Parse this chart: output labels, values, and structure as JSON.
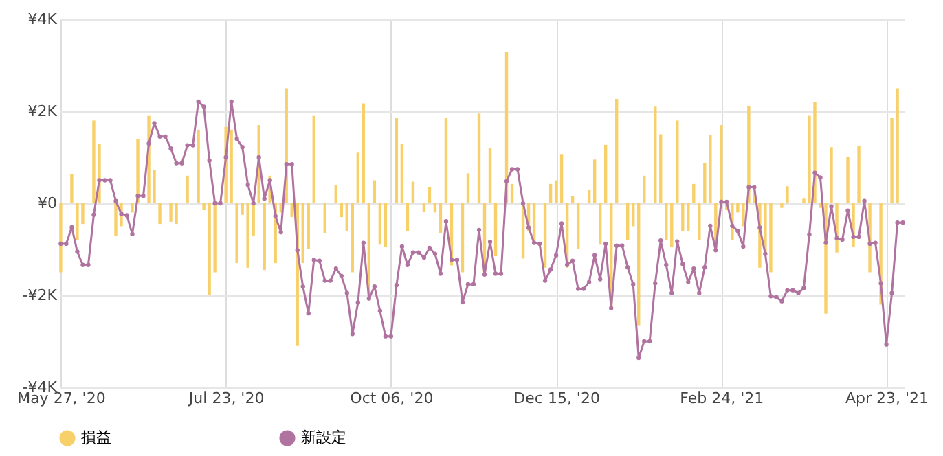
{
  "chart_data": {
    "type": "bar",
    "categories": [
      "May 27, '20",
      null,
      null,
      null,
      null,
      null,
      null,
      null,
      null,
      null,
      null,
      null,
      null,
      null,
      null,
      null,
      null,
      null,
      null,
      null,
      null,
      null,
      null,
      null,
      null,
      null,
      null,
      null,
      null,
      null,
      "Jul 23, '20",
      null,
      null,
      null,
      null,
      null,
      null,
      null,
      null,
      null,
      null,
      null,
      null,
      null,
      null,
      null,
      null,
      null,
      null,
      null,
      null,
      null,
      null,
      null,
      null,
      null,
      null,
      null,
      null,
      null,
      "Oct 06, '20",
      null,
      null,
      null,
      null,
      null,
      null,
      null,
      null,
      null,
      null,
      null,
      null,
      null,
      null,
      null,
      null,
      null,
      null,
      null,
      null,
      null,
      null,
      null,
      null,
      null,
      null,
      null,
      null,
      null,
      "Dec 15, '20",
      null,
      null,
      null,
      null,
      null,
      null,
      null,
      null,
      null,
      null,
      null,
      null,
      null,
      null,
      null,
      null,
      null,
      null,
      null,
      null,
      null,
      null,
      null,
      null,
      null,
      null,
      null,
      null,
      null,
      "Feb 24, '21",
      null,
      null,
      null,
      null,
      null,
      null,
      null,
      null,
      null,
      null,
      null,
      null,
      null,
      null,
      null,
      null,
      null,
      null,
      null,
      null,
      null,
      null,
      null,
      null,
      null,
      null,
      null,
      null,
      null,
      "Apr 23, '21",
      null,
      null,
      null
    ],
    "series": [
      {
        "name": "損益",
        "color": "#f8d06a",
        "values": [
          -1500,
          null,
          630,
          -800,
          -450,
          null,
          1800,
          1300,
          null,
          null,
          -700,
          -500,
          null,
          -200,
          1400,
          null,
          1900,
          720,
          -450,
          null,
          -400,
          -450,
          null,
          600,
          null,
          1600,
          -150,
          -2000,
          -1500,
          null,
          1660,
          1600,
          -1300,
          -250,
          -1400,
          -700,
          1700,
          -1450,
          600,
          -1300,
          -200,
          2500,
          -300,
          -3100,
          -1300,
          -1000,
          1900,
          null,
          -650,
          null,
          400,
          -300,
          -600,
          -1500,
          1100,
          2170,
          -2000,
          500,
          -900,
          -950,
          null,
          1850,
          1300,
          -600,
          470,
          null,
          -180,
          350,
          -200,
          -650,
          1850,
          -1350,
          null,
          -1500,
          650,
          null,
          1950,
          -1500,
          1200,
          -1150,
          null,
          3300,
          420,
          null,
          -1200,
          -600,
          -900,
          null,
          -1400,
          420,
          500,
          1070,
          -1400,
          150,
          -1000,
          null,
          300,
          950,
          -900,
          1270,
          -2300,
          2270,
          null,
          -800,
          -500,
          -2650,
          600,
          null,
          2100,
          1500,
          -800,
          -950,
          1800,
          -600,
          -600,
          420,
          -800,
          870,
          1480,
          -1000,
          1700,
          -150,
          -800,
          -200,
          -500,
          2120,
          300,
          -1400,
          -1100,
          -1500,
          null,
          -100,
          370,
          null,
          null,
          100,
          1900,
          2200,
          -100,
          -2400,
          1220,
          -1070,
          null,
          1000,
          -950,
          1250,
          null,
          -1500,
          null,
          -2200,
          null,
          1850,
          2500,
          null
        ]
      },
      {
        "name": "新設定",
        "type": "line",
        "color": "#b0729f",
        "values": [
          -880,
          -880,
          -520,
          -1050,
          -1340,
          -1340,
          -250,
          500,
          500,
          500,
          50,
          -230,
          -260,
          -670,
          160,
          160,
          1300,
          1740,
          1450,
          1450,
          1190,
          870,
          870,
          1260,
          1260,
          2210,
          2100,
          930,
          0,
          0,
          1000,
          2210,
          1400,
          1220,
          400,
          0,
          1000,
          100,
          500,
          -280,
          -630,
          850,
          850,
          -1020,
          -1810,
          -2390,
          -1230,
          -1250,
          -1680,
          -1680,
          -1420,
          -1580,
          -1950,
          -2840,
          -2160,
          -860,
          -2070,
          -1810,
          -2340,
          -2890,
          -2890,
          -1780,
          -940,
          -1340,
          -1070,
          -1070,
          -1180,
          -970,
          -1100,
          -1530,
          -390,
          -1230,
          -1230,
          -2150,
          -1760,
          -1760,
          -580,
          -1550,
          -840,
          -1530,
          -1530,
          480,
          740,
          740,
          0,
          -530,
          -860,
          -880,
          -1680,
          -1440,
          -1130,
          -440,
          -1340,
          -1250,
          -1860,
          -1860,
          -1710,
          -1130,
          -1650,
          -880,
          -2280,
          -920,
          -920,
          -1390,
          -1760,
          -3360,
          -3000,
          -3000,
          -1740,
          -810,
          -1340,
          -1950,
          -830,
          -1320,
          -1710,
          -1420,
          -1950,
          -1390,
          -490,
          -1020,
          30,
          30,
          -490,
          -600,
          -940,
          350,
          350,
          -530,
          -1100,
          -2020,
          -2040,
          -2130,
          -1890,
          -1890,
          -1950,
          -1840,
          -680,
          660,
          560,
          -860,
          -70,
          -760,
          -790,
          -160,
          -730,
          -730,
          50,
          -880,
          -860,
          -1740,
          -3070,
          -1950,
          -420,
          -420
        ]
      }
    ],
    "ylim": [
      -4000,
      4000
    ],
    "yticks": [
      {
        "value": -4000,
        "label": "-¥4K"
      },
      {
        "value": -2000,
        "label": "-¥2K"
      },
      {
        "value": 0,
        "label": "¥0"
      },
      {
        "value": 2000,
        "label": "¥2K"
      },
      {
        "value": 4000,
        "label": "¥4K"
      }
    ],
    "grid": true,
    "legend": "bottom",
    "marker": "circle",
    "line_style": "solid"
  }
}
